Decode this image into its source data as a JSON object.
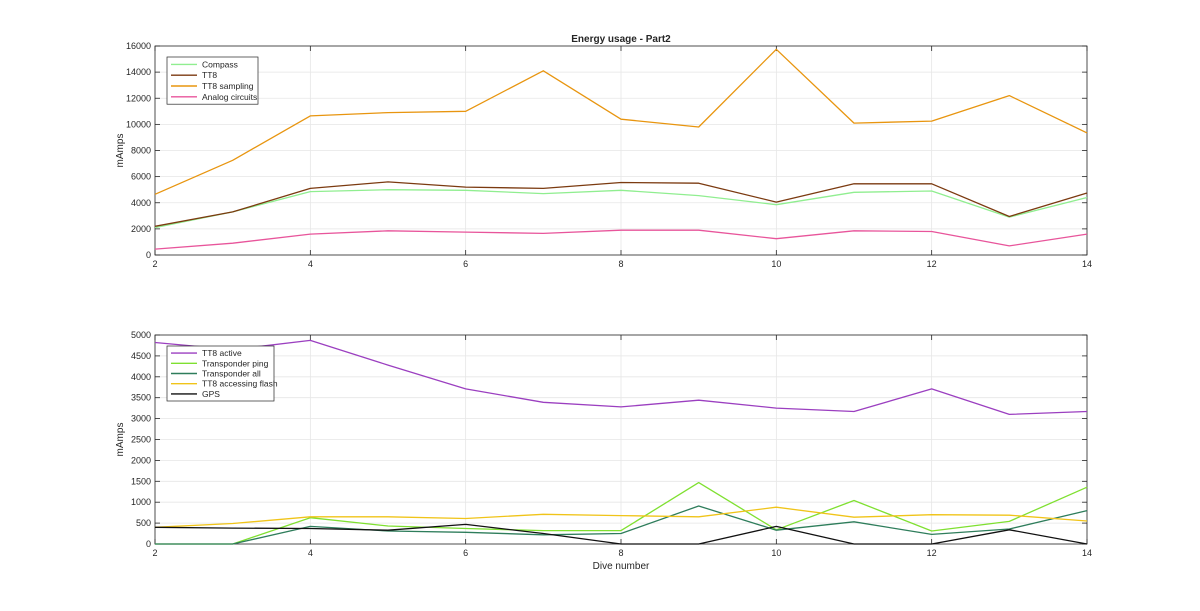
{
  "chart_data": [
    {
      "type": "line",
      "title": "Energy usage - Part2",
      "xlabel": "",
      "ylabel": "mAmps",
      "xlim": [
        2,
        14
      ],
      "ylim": [
        0,
        16000
      ],
      "xticks": [
        2,
        4,
        6,
        8,
        10,
        12,
        14
      ],
      "yticks": [
        0,
        2000,
        4000,
        6000,
        8000,
        10000,
        12000,
        14000,
        16000
      ],
      "grid": true,
      "legend": "top-left",
      "x": [
        2,
        3,
        4,
        5,
        6,
        7,
        8,
        9,
        10,
        11,
        12,
        13,
        14
      ],
      "series": [
        {
          "name": "Compass",
          "color": "#90ee90",
          "values": [
            2100,
            3300,
            4850,
            5000,
            4950,
            4700,
            4950,
            4550,
            3850,
            4800,
            4900,
            2900,
            4400
          ]
        },
        {
          "name": "TT8",
          "color": "#7b3a10",
          "values": [
            2200,
            3300,
            5100,
            5600,
            5200,
            5100,
            5550,
            5500,
            4050,
            5450,
            5450,
            2950,
            4750
          ]
        },
        {
          "name": "TT8 sampling",
          "color": "#e8950f",
          "values": [
            4650,
            7250,
            10650,
            10900,
            11000,
            14100,
            10400,
            9800,
            15750,
            10100,
            10250,
            12200,
            9350
          ]
        },
        {
          "name": "Analog circuits",
          "color": "#e8559b",
          "values": [
            450,
            900,
            1600,
            1850,
            1750,
            1650,
            1900,
            1900,
            1250,
            1850,
            1800,
            700,
            1600
          ]
        }
      ]
    },
    {
      "type": "line",
      "title": "",
      "xlabel": "Dive number",
      "ylabel": "mAmps",
      "xlim": [
        2,
        14
      ],
      "ylim": [
        0,
        5000
      ],
      "xticks": [
        2,
        4,
        6,
        8,
        10,
        12,
        14
      ],
      "yticks": [
        0,
        500,
        1000,
        1500,
        2000,
        2500,
        3000,
        3500,
        4000,
        4500,
        5000
      ],
      "grid": true,
      "legend": "top-left",
      "x": [
        2,
        3,
        4,
        5,
        6,
        7,
        8,
        9,
        10,
        11,
        12,
        13,
        14
      ],
      "series": [
        {
          "name": "TT8 active",
          "color": "#9b3fc0",
          "values": [
            4820,
            4650,
            4870,
            4280,
            3710,
            3390,
            3280,
            3440,
            3250,
            3170,
            3710,
            3100,
            3170
          ]
        },
        {
          "name": "Transponder ping",
          "color": "#7fe030",
          "values": [
            0,
            0,
            630,
            430,
            370,
            320,
            320,
            1470,
            340,
            1040,
            310,
            540,
            1360
          ]
        },
        {
          "name": "Transponder all",
          "color": "#2e7d5b",
          "values": [
            0,
            0,
            420,
            310,
            280,
            220,
            250,
            910,
            330,
            530,
            230,
            360,
            800
          ]
        },
        {
          "name": "TT8 accessing flash",
          "color": "#f0c419",
          "values": [
            400,
            490,
            650,
            650,
            610,
            710,
            680,
            650,
            880,
            640,
            700,
            690,
            550
          ]
        },
        {
          "name": "GPS",
          "color": "#111111",
          "values": [
            400,
            380,
            370,
            330,
            470,
            250,
            0,
            0,
            420,
            0,
            0,
            340,
            0
          ]
        }
      ]
    }
  ]
}
